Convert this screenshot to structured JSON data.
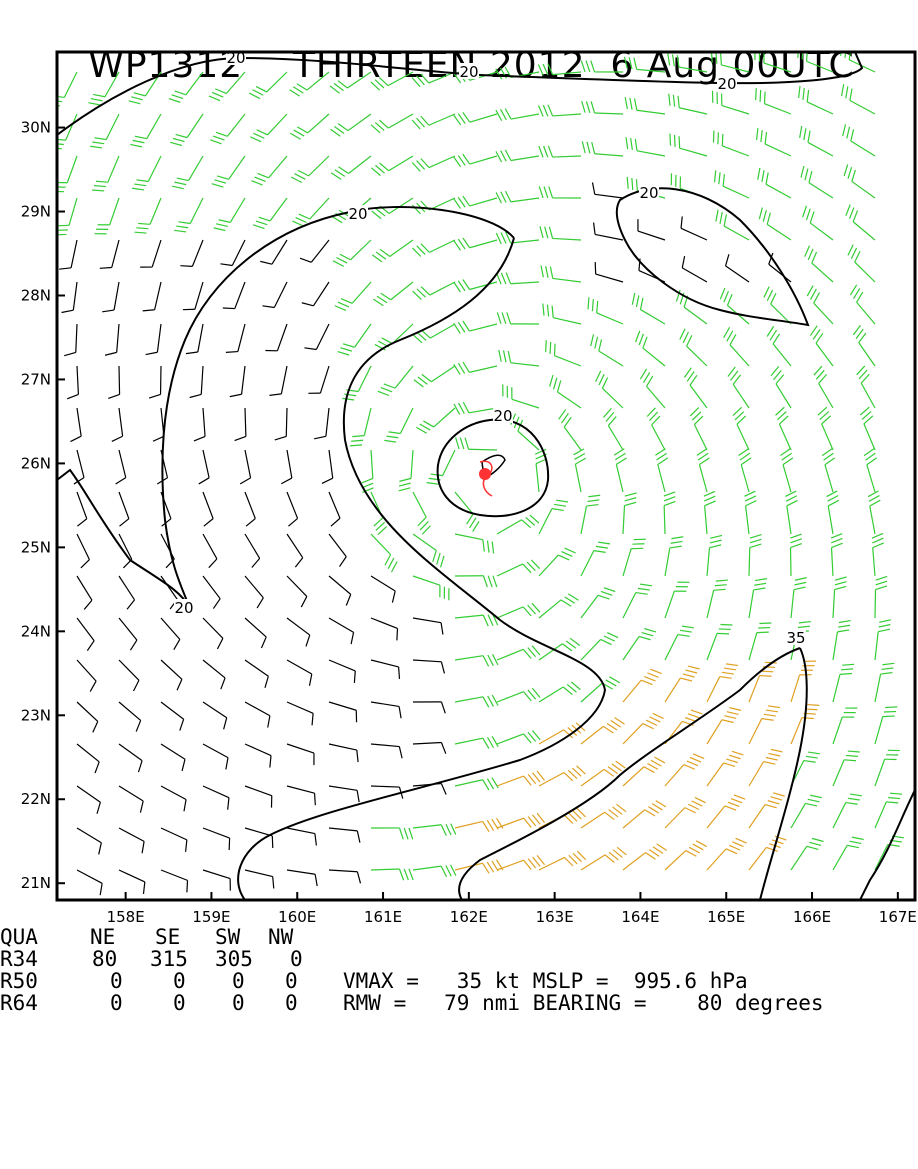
{
  "title": {
    "storm_id": "WP1312",
    "storm_name": "THIRTEEN",
    "year": "2012",
    "date_time": "6 Aug 00UTC"
  },
  "map": {
    "lat_labels": [
      "30N",
      "29N",
      "28N",
      "27N",
      "26N",
      "25N",
      "24N",
      "23N",
      "22N",
      "21N"
    ],
    "lon_labels": [
      "158E",
      "159E",
      "160E",
      "161E",
      "162E",
      "163E",
      "164E",
      "165E",
      "166E",
      "167E"
    ],
    "lon_range": [
      157.2,
      167.2
    ],
    "lat_range": [
      20.8,
      30.9
    ],
    "storm_center": {
      "lon": 162.2,
      "lat": 25.8
    },
    "contour_labels": [
      "20",
      "20",
      "20",
      "20",
      "20",
      "20",
      "20",
      "35"
    ],
    "colors": {
      "wind_lt_20kt": "#000000",
      "wind_20_34kt": "#33cc33",
      "wind_ge_34kt": "#e0a020",
      "contour": "#000000",
      "center": "#ff3333"
    }
  },
  "stats": {
    "quadrant_header": {
      "label": "QUA",
      "cols": [
        "NE",
        "SE",
        "SW",
        "NW"
      ]
    },
    "radii": [
      {
        "label": "R34",
        "values": [
          "80",
          "315",
          "305",
          "0"
        ]
      },
      {
        "label": "R50",
        "values": [
          "0",
          "0",
          "0",
          "0"
        ]
      },
      {
        "label": "R64",
        "values": [
          "0",
          "0",
          "0",
          "0"
        ]
      }
    ],
    "vmax": {
      "label": "VMAX =",
      "value": "35",
      "unit": "kt"
    },
    "mslp": {
      "label": "MSLP =",
      "value": "995.6",
      "unit": "hPa"
    },
    "rmw": {
      "label": "RMW =",
      "value": "79",
      "unit": "nmi"
    },
    "bearing": {
      "label": "BEARING =",
      "value": "80",
      "unit": "degrees"
    }
  }
}
